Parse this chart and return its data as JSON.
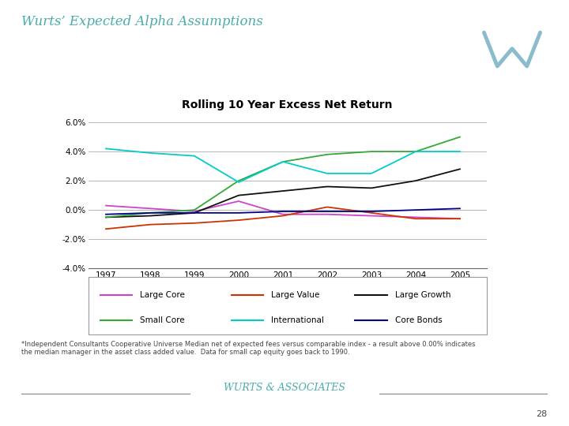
{
  "title": "Wurts’ Expected Alpha Assumptions",
  "chart_title": "Rolling 10 Year Excess Net Return",
  "years": [
    1997,
    1998,
    1999,
    2000,
    2001,
    2002,
    2003,
    2004,
    2005
  ],
  "series": [
    {
      "name": "Large Core",
      "color": "#CC44CC",
      "values": [
        0.003,
        0.001,
        -0.001,
        0.006,
        -0.003,
        -0.003,
        -0.004,
        -0.005,
        -0.006
      ]
    },
    {
      "name": "Large Value",
      "color": "#CC3300",
      "values": [
        -0.013,
        -0.01,
        -0.009,
        -0.007,
        -0.004,
        0.002,
        -0.002,
        -0.006,
        -0.006
      ]
    },
    {
      "name": "Large Growth",
      "color": "#111111",
      "values": [
        -0.005,
        -0.004,
        -0.002,
        0.01,
        0.013,
        0.016,
        0.015,
        0.02,
        0.028
      ]
    },
    {
      "name": "Small Core",
      "color": "#33AA33",
      "values": [
        -0.005,
        -0.002,
        0.0,
        0.02,
        0.033,
        0.038,
        0.04,
        0.04,
        0.05
      ]
    },
    {
      "name": "International",
      "color": "#00CCCC",
      "values": [
        0.042,
        0.039,
        0.037,
        0.019,
        0.033,
        0.025,
        0.025,
        0.04,
        0.04
      ]
    },
    {
      "name": "Core Bonds",
      "color": "#000088",
      "values": [
        -0.003,
        -0.002,
        -0.002,
        -0.002,
        -0.001,
        -0.001,
        -0.001,
        0.0,
        0.001
      ]
    }
  ],
  "ylim": [
    -0.04,
    0.065
  ],
  "yticks": [
    -0.04,
    -0.02,
    0.0,
    0.02,
    0.04,
    0.06
  ],
  "ytick_labels": [
    "-4.0%",
    "-2.0%",
    "0.0%",
    "2.0%",
    "4.0%",
    "6.0%"
  ],
  "footer_text": "*Independent Consultants Cooperative Universe Median net of expected fees versus comparable index - a result above 0.00% indicates\nthe median manager in the asset class added value.  Data for small cap equity goes back to 1990.",
  "footer_brand": "WURTS & ASSOCIATES",
  "page_number": "28",
  "bg_color": "#FFFFFF",
  "title_color": "#4AABAB",
  "chart_title_fontsize": 10,
  "title_fontsize": 12,
  "logo_bg": "#C8DDE8",
  "logo_text_color": "#8BBCCC"
}
